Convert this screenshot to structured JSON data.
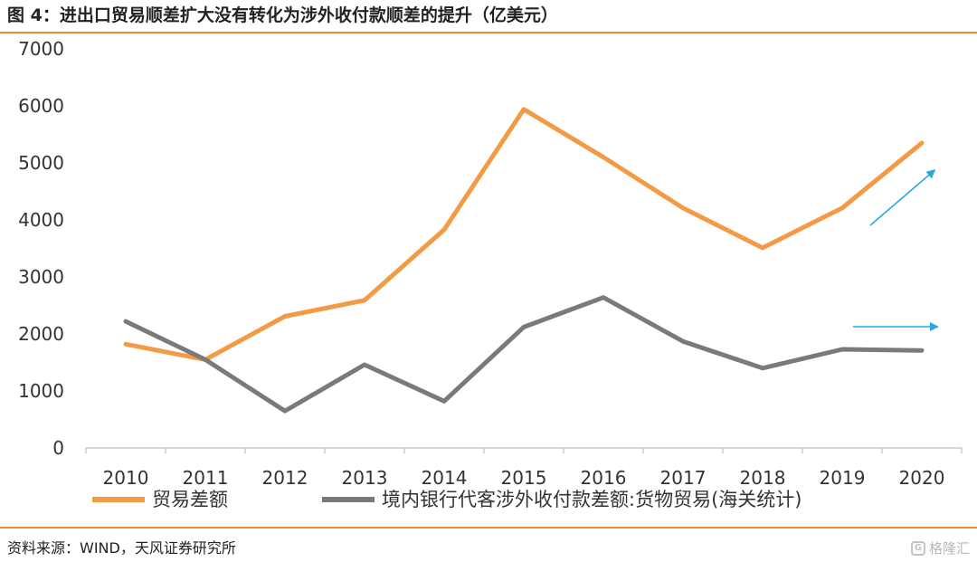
{
  "header": {
    "title": "图 4：进出口贸易顺差扩大没有转化为涉外收付款顺差的提升（亿美元）"
  },
  "footer": {
    "source": "资料来源：WIND，天风证券研究所",
    "watermark": "格隆汇"
  },
  "colors": {
    "rule": "#ef8a3a",
    "series1": "#f39a45",
    "series2": "#7a7a7a",
    "arrows": "#29a8e0"
  },
  "icons": {
    "arrows": [
      "arrow-up-right-icon",
      "arrow-right-icon"
    ]
  },
  "chart_data": {
    "type": "line",
    "x": [
      "2010",
      "2011",
      "2012",
      "2013",
      "2014",
      "2015",
      "2016",
      "2017",
      "2018",
      "2019",
      "2020"
    ],
    "yticks": [
      "0",
      "1000",
      "2000",
      "3000",
      "4000",
      "5000",
      "6000",
      "7000"
    ],
    "ylim": [
      0,
      7000
    ],
    "grid": false,
    "legend_position": "bottom",
    "series": [
      {
        "name": "贸易差额",
        "values": [
          1820,
          1550,
          2310,
          2590,
          3830,
          5940,
          5100,
          4210,
          3510,
          4210,
          5350
        ]
      },
      {
        "name": "境内银行代客涉外收付款差额:货物贸易(海关统计)",
        "values": [
          2220,
          1550,
          650,
          1460,
          820,
          2120,
          2640,
          1870,
          1400,
          1730,
          1710
        ]
      }
    ]
  }
}
